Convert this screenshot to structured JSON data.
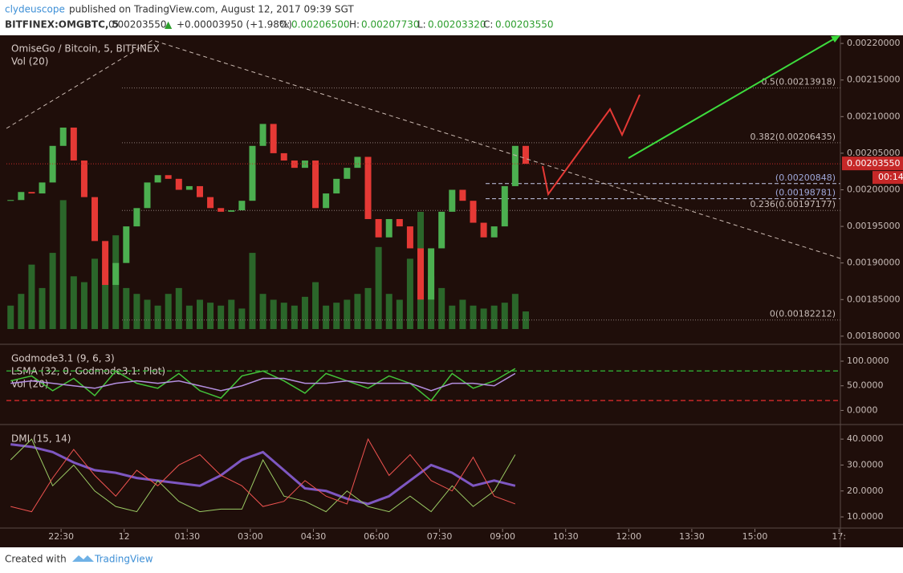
{
  "header": {
    "author": "clydeuscope",
    "published": "published on TradingView.com, August 12, 2017 09:39 SGT",
    "symbol": "BITFINEX:OMGBTC, 5",
    "price": "0.00203550",
    "arrow": "▲",
    "change": "+0.00003950 (+1.98%)",
    "open_label": "O:",
    "open": "0.00206500",
    "high_label": "H:",
    "high": "0.00207730",
    "low_label": "L:",
    "low": "0.00203320",
    "close_label": "C:",
    "close": "0.00203550"
  },
  "footer": {
    "created": "Created with",
    "brand": "TradingView"
  },
  "chart_data": [
    {
      "type": "candlestick",
      "title": "OmiseGo / Bitcoin, 5, BITFINEX",
      "subtitle": "Vol (20)",
      "up_color": "#4caf50",
      "down_color": "#e53935",
      "volume_color": "#2e7d32",
      "x": [
        -72,
        -57,
        -42,
        -27,
        -12,
        3,
        18,
        33,
        48,
        63,
        78,
        93,
        108,
        123,
        138,
        153,
        168,
        183,
        198,
        213,
        228,
        243,
        258,
        273,
        288,
        303,
        318,
        333,
        348,
        363,
        378,
        393,
        408,
        423,
        438,
        453,
        468,
        483,
        498,
        513,
        528,
        543,
        558,
        573,
        588,
        603,
        618,
        633,
        648,
        663
      ],
      "values": [
        0.001986,
        0.001997,
        0.001995,
        0.00201,
        0.00206,
        0.002085,
        0.00204,
        0.00199,
        0.00193,
        0.00187,
        0.0019,
        0.00195,
        0.001975,
        0.00201,
        0.00202,
        0.002015,
        0.002,
        0.002005,
        0.00199,
        0.001975,
        0.00197,
        0.001972,
        0.001985,
        0.00206,
        0.00209,
        0.00205,
        0.00204,
        0.00203,
        0.00204,
        0.001975,
        0.001995,
        0.002015,
        0.00203,
        0.002045,
        0.00196,
        0.001935,
        0.00196,
        0.00195,
        0.00192,
        0.00185,
        0.00192,
        0.00197,
        0.002,
        0.001985,
        0.001955,
        0.001935,
        0.00195,
        0.002005,
        0.00206,
        0.0020355
      ],
      "volume": [
        40,
        60,
        110,
        70,
        130,
        220,
        90,
        80,
        120,
        100,
        160,
        70,
        60,
        50,
        40,
        60,
        70,
        40,
        50,
        45,
        40,
        50,
        35,
        130,
        60,
        50,
        45,
        40,
        55,
        80,
        40,
        45,
        50,
        60,
        70,
        140,
        60,
        50,
        120,
        200,
        90,
        70,
        40,
        50,
        40,
        35,
        40,
        45,
        60,
        30
      ],
      "y2lim": [
        0,
        500
      ],
      "xlim": [
        -78,
        1112
      ],
      "ylim": [
        0.00179,
        0.00221
      ],
      "yticks": [
        {
          "value": 0.0022,
          "label": "0.00220000"
        },
        {
          "value": 0.00215,
          "label": "0.00215000"
        },
        {
          "value": 0.0021,
          "label": "0.00210000"
        },
        {
          "value": 0.00205,
          "label": "0.00205000"
        },
        {
          "value": 0.002,
          "label": "0.00200000"
        },
        {
          "value": 0.00195,
          "label": "0.00195000"
        },
        {
          "value": 0.0019,
          "label": "0.00190000"
        },
        {
          "value": 0.00185,
          "label": "0.00185000"
        },
        {
          "value": 0.0018,
          "label": "0.00180000"
        }
      ],
      "fib_levels": [
        {
          "value": 0.00213918,
          "label": "0.5(0.00213918)"
        },
        {
          "value": 0.00206435,
          "label": "0.382(0.00206435)"
        },
        {
          "value": 0.00197177,
          "label": "0.236(0.00197177)"
        },
        {
          "value": 0.00182212,
          "label": "0(0.00182212)"
        }
      ],
      "levels": [
        {
          "value": 0.00200848,
          "label": "(0.00200848)"
        },
        {
          "value": 0.00198781,
          "label": "(0.00198781)"
        }
      ],
      "last_price": {
        "value": 0.0020355,
        "label": "0.00203550"
      },
      "countdown": "00:14"
    },
    {
      "type": "line",
      "title": "Godmode3.1 (9, 6, 3)",
      "subtitle": "LSMA (32, 0, Godmode3.1: Plot)",
      "note": "Vol (20)",
      "x": [
        -72,
        -42,
        -12,
        18,
        48,
        78,
        108,
        138,
        168,
        198,
        228,
        258,
        288,
        318,
        348,
        378,
        408,
        438,
        468,
        498,
        528,
        558,
        588,
        618,
        648
      ],
      "series": [
        {
          "color": "#43c23a",
          "values": [
            60,
            70,
            40,
            65,
            30,
            80,
            55,
            45,
            75,
            40,
            25,
            70,
            80,
            60,
            35,
            75,
            60,
            45,
            70,
            55,
            20,
            75,
            45,
            60,
            85
          ]
        },
        {
          "color": "#b48fe0",
          "values": [
            55,
            60,
            55,
            50,
            45,
            55,
            60,
            55,
            60,
            50,
            40,
            50,
            65,
            65,
            55,
            55,
            60,
            55,
            55,
            55,
            40,
            55,
            55,
            50,
            75
          ]
        }
      ],
      "hlines": [
        {
          "value": 80,
          "color": "#2e9e2e"
        },
        {
          "value": 20,
          "color": "#c62828"
        }
      ],
      "xlim": [
        -78,
        1112
      ],
      "ylim": [
        -27,
        131
      ],
      "yticks": [
        {
          "value": 100,
          "label": "100.0000"
        },
        {
          "value": 50,
          "label": "50.0000"
        },
        {
          "value": 0,
          "label": "0.0000"
        }
      ]
    },
    {
      "type": "line",
      "title": "DMI (15, 14)",
      "x": [
        -72,
        -42,
        -12,
        18,
        48,
        78,
        108,
        138,
        168,
        198,
        228,
        258,
        288,
        318,
        348,
        378,
        408,
        438,
        468,
        498,
        528,
        558,
        588,
        618,
        648
      ],
      "series": [
        {
          "color": "#7e57c2",
          "width": 3,
          "values": [
            38,
            37,
            35,
            31,
            28,
            27,
            25,
            24,
            23,
            22,
            26,
            32,
            35,
            28,
            21,
            20,
            17,
            15,
            18,
            24,
            30,
            27,
            22,
            24,
            22
          ]
        },
        {
          "color": "#9ccc65",
          "width": 1,
          "values": [
            32,
            40,
            22,
            30,
            20,
            14,
            12,
            24,
            16,
            12,
            13,
            13,
            32,
            18,
            16,
            12,
            20,
            14,
            12,
            18,
            12,
            22,
            14,
            20,
            34
          ]
        },
        {
          "color": "#ef5350",
          "width": 1,
          "values": [
            14,
            12,
            25,
            36,
            26,
            18,
            28,
            22,
            30,
            34,
            26,
            22,
            14,
            16,
            24,
            18,
            15,
            40,
            26,
            34,
            24,
            20,
            33,
            18,
            15
          ]
        }
      ],
      "xlim": [
        -78,
        1112
      ],
      "ylim": [
        6,
        45
      ],
      "yticks": [
        {
          "value": 40,
          "label": "40.0000"
        },
        {
          "value": 30,
          "label": "30.0000"
        },
        {
          "value": 20,
          "label": "20.0000"
        },
        {
          "value": 10,
          "label": "10.0000"
        }
      ],
      "xticks": [
        {
          "value": 0,
          "label": "22:30"
        },
        {
          "value": 90,
          "label": "12"
        },
        {
          "value": 180,
          "label": "01:30"
        },
        {
          "value": 270,
          "label": "03:00"
        },
        {
          "value": 360,
          "label": "04:30"
        },
        {
          "value": 450,
          "label": "06:00"
        },
        {
          "value": 540,
          "label": "07:30"
        },
        {
          "value": 630,
          "label": "09:00"
        },
        {
          "value": 720,
          "label": "10:30"
        },
        {
          "value": 810,
          "label": "12:00"
        },
        {
          "value": 900,
          "label": "13:30"
        },
        {
          "value": 990,
          "label": "15:00"
        },
        {
          "value": 1110,
          "label": "17:"
        }
      ]
    }
  ]
}
